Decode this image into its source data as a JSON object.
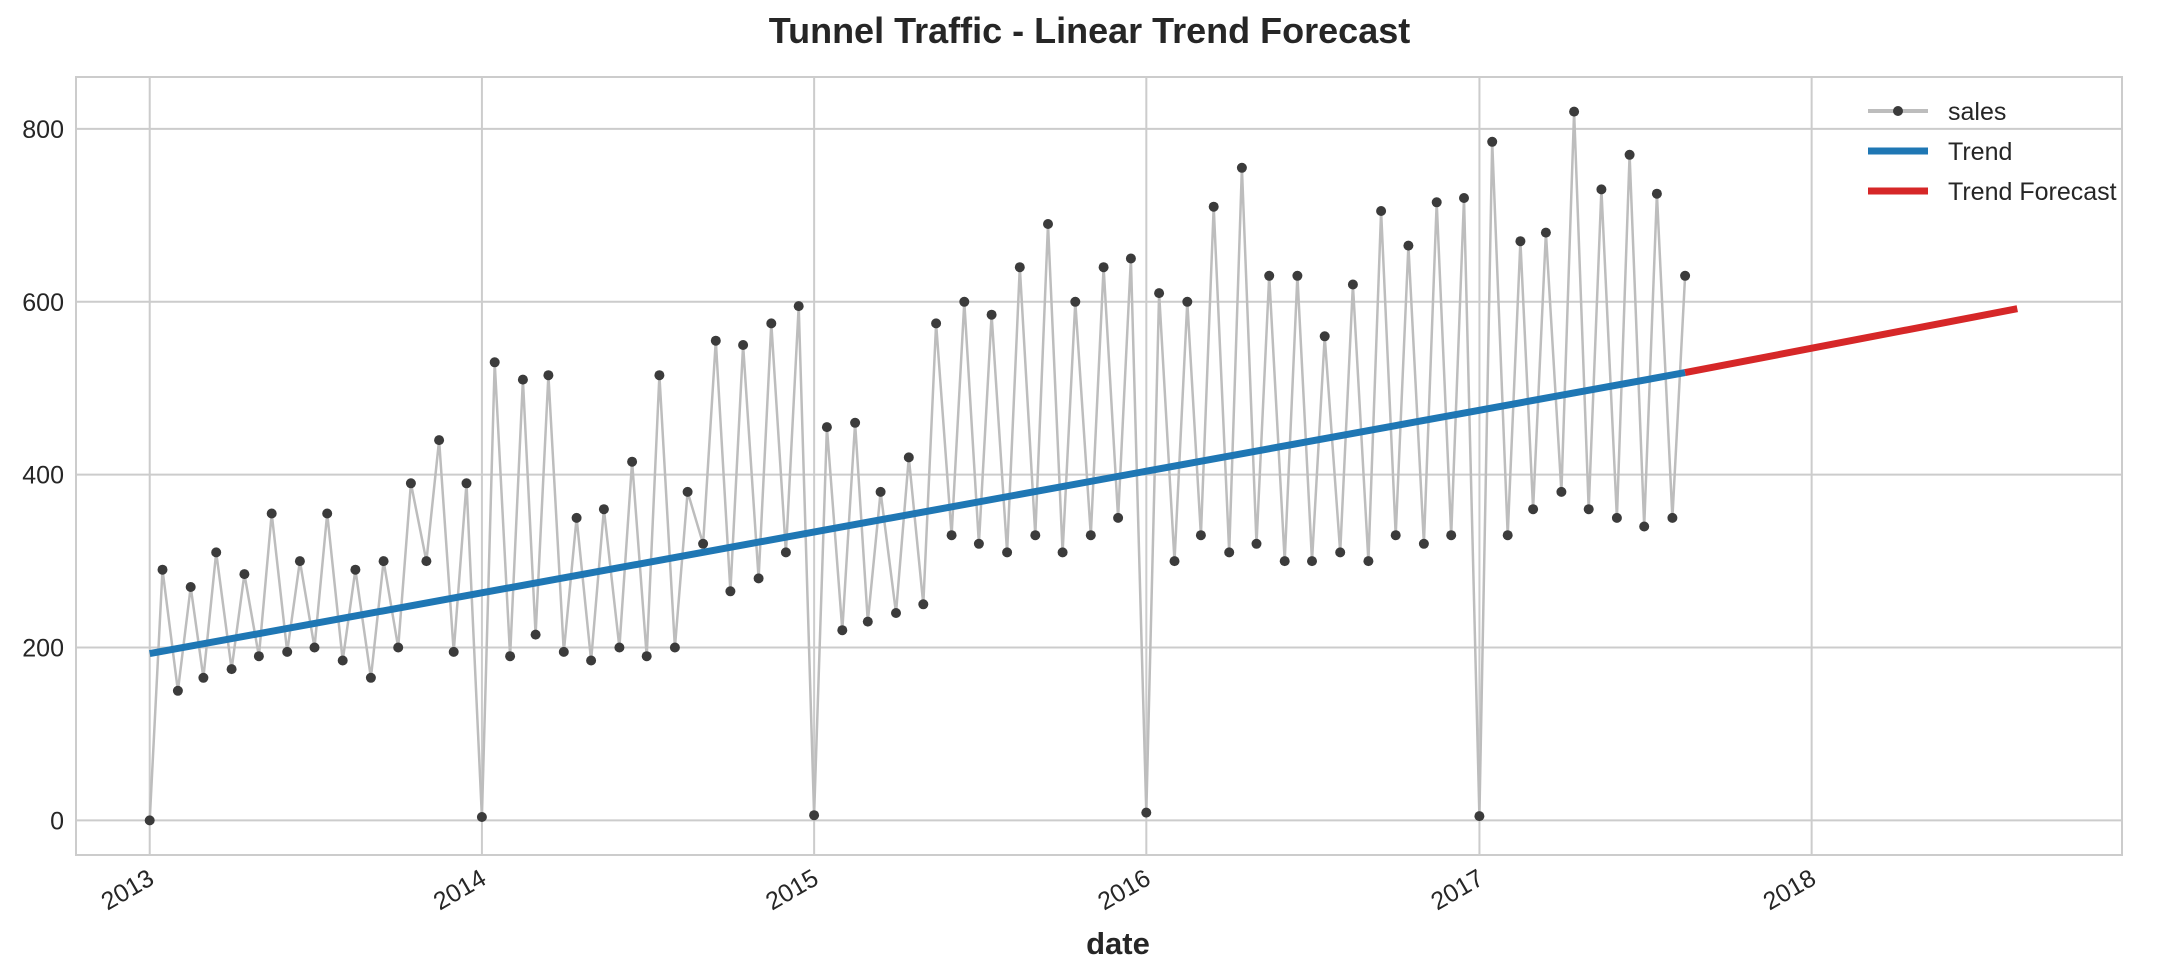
{
  "chart_data": {
    "type": "line",
    "title": "Tunnel Traffic - Linear Trend Forecast",
    "xlabel": "date",
    "ylabel": "",
    "x_range": [
      "2012-10-12",
      "2018-12-08"
    ],
    "ylim": [
      -40,
      860
    ],
    "grid": true,
    "legend_position": "top-right",
    "x_ticks": [
      {
        "date": "2013-01-01",
        "label": "2013"
      },
      {
        "date": "2014-01-01",
        "label": "2014"
      },
      {
        "date": "2015-01-01",
        "label": "2015"
      },
      {
        "date": "2016-01-01",
        "label": "2016"
      },
      {
        "date": "2017-01-01",
        "label": "2017"
      },
      {
        "date": "2018-01-01",
        "label": "2018"
      }
    ],
    "y_ticks": [
      0,
      200,
      400,
      600,
      800
    ],
    "series": [
      {
        "name": "sales",
        "color": "#bdbdbd",
        "marker_color": "#3b3b3b",
        "style": "line-with-markers",
        "x": [
          "2013-01-01",
          "2013-01-15",
          "2013-02-01",
          "2013-02-15",
          "2013-03-01",
          "2013-03-15",
          "2013-04-01",
          "2013-04-15",
          "2013-05-01",
          "2013-05-15",
          "2013-06-01",
          "2013-06-15",
          "2013-07-01",
          "2013-07-15",
          "2013-08-01",
          "2013-08-15",
          "2013-09-01",
          "2013-09-15",
          "2013-10-01",
          "2013-10-15",
          "2013-11-01",
          "2013-11-15",
          "2013-12-01",
          "2013-12-15",
          "2014-01-01",
          "2014-01-15",
          "2014-02-01",
          "2014-02-15",
          "2014-03-01",
          "2014-03-15",
          "2014-04-01",
          "2014-04-15",
          "2014-05-01",
          "2014-05-15",
          "2014-06-01",
          "2014-06-15",
          "2014-07-01",
          "2014-07-15",
          "2014-08-01",
          "2014-08-15",
          "2014-09-01",
          "2014-09-15",
          "2014-10-01",
          "2014-10-15",
          "2014-11-01",
          "2014-11-15",
          "2014-12-01",
          "2014-12-15",
          "2015-01-01",
          "2015-01-15",
          "2015-02-01",
          "2015-02-15",
          "2015-03-01",
          "2015-03-15",
          "2015-04-01",
          "2015-04-15",
          "2015-05-01",
          "2015-05-15",
          "2015-06-01",
          "2015-06-15",
          "2015-07-01",
          "2015-07-15",
          "2015-08-01",
          "2015-08-15",
          "2015-09-01",
          "2015-09-15",
          "2015-10-01",
          "2015-10-15",
          "2015-11-01",
          "2015-11-15",
          "2015-12-01",
          "2015-12-15",
          "2016-01-01",
          "2016-01-15",
          "2016-02-01",
          "2016-02-15",
          "2016-03-01",
          "2016-03-15",
          "2016-04-01",
          "2016-04-15",
          "2016-05-01",
          "2016-05-15",
          "2016-06-01",
          "2016-06-15",
          "2016-07-01",
          "2016-07-15",
          "2016-08-01",
          "2016-08-15",
          "2016-09-01",
          "2016-09-15",
          "2016-10-01",
          "2016-10-15",
          "2016-11-01",
          "2016-11-15",
          "2016-12-01",
          "2016-12-15",
          "2017-01-01",
          "2017-01-15",
          "2017-02-01",
          "2017-02-15",
          "2017-03-01",
          "2017-03-15",
          "2017-04-01",
          "2017-04-15",
          "2017-05-01",
          "2017-05-15",
          "2017-06-01",
          "2017-06-15",
          "2017-07-01",
          "2017-07-15",
          "2017-08-01",
          "2017-08-15"
        ],
        "values": [
          0,
          290,
          150,
          270,
          165,
          310,
          175,
          285,
          190,
          355,
          195,
          300,
          200,
          355,
          185,
          290,
          165,
          300,
          200,
          390,
          300,
          440,
          195,
          390,
          4,
          530,
          190,
          510,
          215,
          515,
          195,
          350,
          185,
          360,
          200,
          415,
          190,
          515,
          200,
          380,
          320,
          555,
          265,
          550,
          280,
          575,
          310,
          595,
          6,
          455,
          220,
          460,
          230,
          380,
          240,
          420,
          250,
          575,
          330,
          600,
          320,
          585,
          310,
          640,
          330,
          690,
          310,
          600,
          330,
          640,
          350,
          650,
          9,
          610,
          300,
          600,
          330,
          710,
          310,
          755,
          320,
          630,
          300,
          630,
          300,
          560,
          310,
          620,
          300,
          705,
          330,
          665,
          320,
          715,
          330,
          720,
          5,
          785,
          330,
          670,
          360,
          680,
          380,
          820,
          360,
          730,
          350,
          770,
          340,
          725,
          350,
          630
        ]
      },
      {
        "name": "Trend",
        "color": "#1f77b4",
        "style": "line",
        "x": [
          "2013-01-01",
          "2017-08-15"
        ],
        "values": [
          193,
          518
        ]
      },
      {
        "name": "Trend Forecast",
        "color": "#d62728",
        "style": "line",
        "x": [
          "2017-08-15",
          "2018-08-15"
        ],
        "values": [
          518,
          592
        ]
      }
    ]
  }
}
